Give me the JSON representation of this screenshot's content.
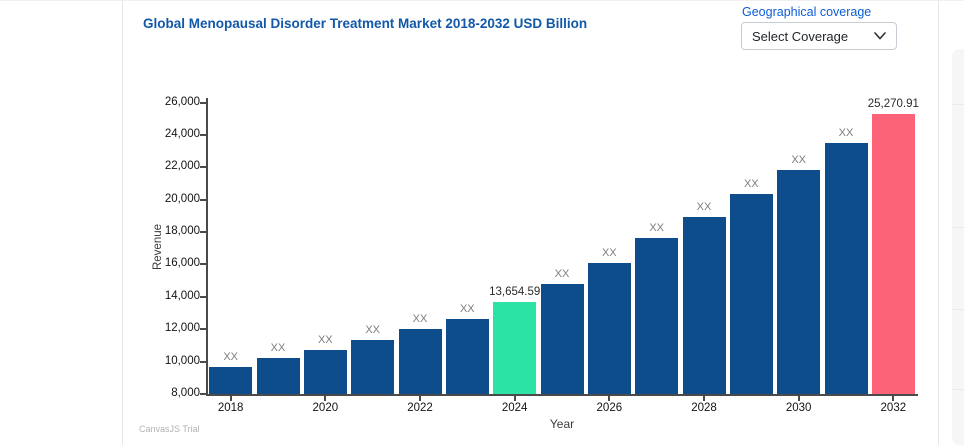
{
  "header": {
    "title": "Global Menopausal Disorder Treatment Market 2018-2032 USD Billion",
    "coverage": {
      "label": "Geographical coverage",
      "selected": "Select Coverage"
    }
  },
  "chart_data": {
    "type": "bar",
    "title": "Global Menopausal Disorder Treatment Market 2018-2032 USD Billion",
    "xlabel": "Year",
    "ylabel": "Revenue",
    "ylim": [
      8000,
      26000
    ],
    "ytick_interval": 2000,
    "ytick_labels": [
      "26,000",
      "24,000",
      "22,000",
      "20,000",
      "18,000",
      "16,000",
      "14,000",
      "12,000",
      "10,000",
      "8,000"
    ],
    "ytick_values": [
      26000,
      24000,
      22000,
      20000,
      18000,
      16000,
      14000,
      12000,
      10000,
      8000
    ],
    "x_axis_tick_labels": [
      "2018",
      "2020",
      "2022",
      "2024",
      "2026",
      "2028",
      "2030",
      "2032"
    ],
    "categories": [
      "2018",
      "2019",
      "2020",
      "2021",
      "2022",
      "2023",
      "2024",
      "2025",
      "2026",
      "2027",
      "2028",
      "2029",
      "2030",
      "2031",
      "2032"
    ],
    "values": [
      9700,
      10200,
      10750,
      11330,
      11990,
      12660,
      13654.59,
      14790,
      16120,
      17630,
      18960,
      20350,
      21850,
      23490,
      25270.91
    ],
    "bar_labels": [
      "XX",
      "XX",
      "XX",
      "XX",
      "XX",
      "XX",
      "13,654.59",
      "XX",
      "XX",
      "XX",
      "XX",
      "XX",
      "XX",
      "XX",
      "25,270.91"
    ],
    "bar_colors": [
      "#0d4d8b",
      "#0d4d8b",
      "#0d4d8b",
      "#0d4d8b",
      "#0d4d8b",
      "#0d4d8b",
      "#2ce3a6",
      "#0d4d8b",
      "#0d4d8b",
      "#0d4d8b",
      "#0d4d8b",
      "#0d4d8b",
      "#0d4d8b",
      "#0d4d8b",
      "#fd6378"
    ],
    "grid": false,
    "legend": "none",
    "watermark": "CanvasJS Trial"
  },
  "colors": {
    "bar_default": "#0d4d8b",
    "bar_highlight_2024": "#2ce3a6",
    "bar_highlight_2032": "#fd6378",
    "title_text": "#1159a8",
    "coverage_label_text": "#0b5ed7"
  }
}
